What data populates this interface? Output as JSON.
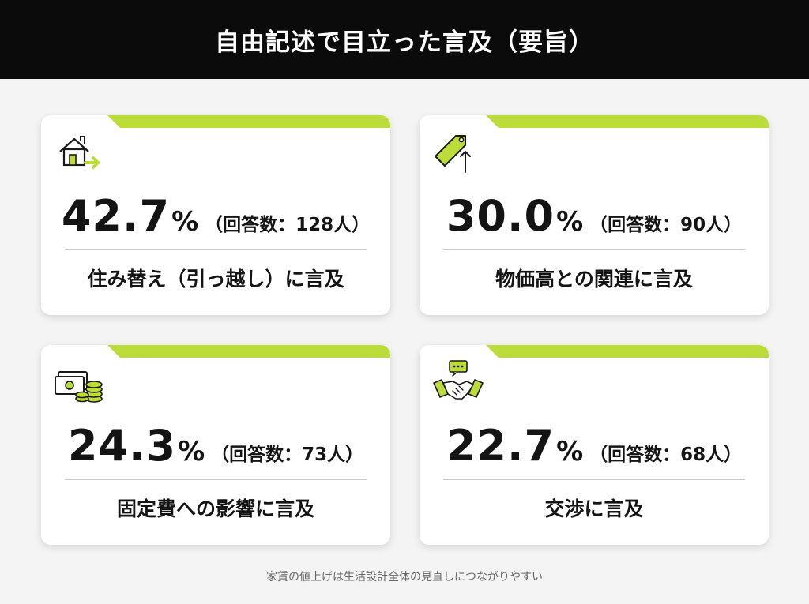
{
  "header": {
    "title": "自由記述で目立った言及（要旨）"
  },
  "cards": [
    {
      "icon": "house-move-icon",
      "percent": "42.7",
      "percent_sign": "%",
      "count": "（回答数：128人）",
      "label": "住み替え（引っ越し）に言及"
    },
    {
      "icon": "price-tag-up-icon",
      "percent": "30.0",
      "percent_sign": "%",
      "count": "（回答数：90人）",
      "label": "物価高との関連に言及"
    },
    {
      "icon": "money-coins-icon",
      "percent": "24.3",
      "percent_sign": "%",
      "count": "（回答数：73人）",
      "label": "固定費への影響に言及"
    },
    {
      "icon": "handshake-chat-icon",
      "percent": "22.7",
      "percent_sign": "%",
      "count": "（回答数：68人）",
      "label": "交渉に言及"
    }
  ],
  "footer": {
    "note": "家賃の値上げは生活設計全体の見直しにつながりやすい"
  },
  "colors": {
    "accent": "#bcdc3a",
    "header_bg": "#0b0b0b",
    "card_bg": "#ffffff",
    "page_bg": "#f4f4f4"
  }
}
